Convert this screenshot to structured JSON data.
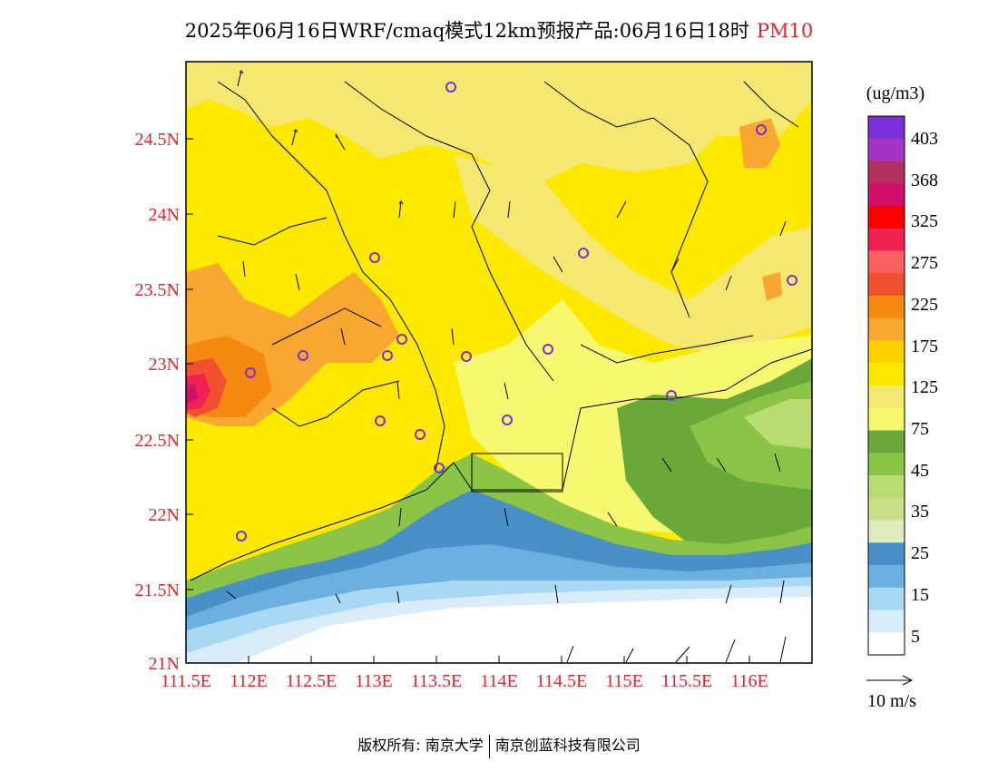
{
  "title": {
    "text": "2025年06月16日WRF/cmaq模式12km预报产品:06月16日18时",
    "variable": "PM10"
  },
  "map": {
    "type": "pollutant_concentration_map",
    "region": "Guangdong / Pearl River Delta",
    "lon_range": [
      111.5,
      116.5
    ],
    "lat_range": [
      21.0,
      25.0
    ],
    "lon_ticks": [
      "111.5E",
      "112E",
      "112.5E",
      "113E",
      "113.5E",
      "114E",
      "114.5E",
      "115E",
      "115.5E",
      "116E"
    ],
    "lat_ticks": [
      "24.5N",
      "24N",
      "23.5N",
      "23N",
      "22.5N",
      "22N",
      "21.5N",
      "21N"
    ],
    "wind_vectors": "shown",
    "city_markers": "purple circles"
  },
  "legend": {
    "unit": "(ug/m3)",
    "labels": [
      "403",
      "368",
      "325",
      "275",
      "225",
      "175",
      "125",
      "75",
      "45",
      "35",
      "25",
      "15",
      "5"
    ],
    "colors": [
      "#7a30d8",
      "#a533c8",
      "#b03060",
      "#d0106a",
      "#ff0000",
      "#f02050",
      "#f86060",
      "#f05030",
      "#f68a10",
      "#f8a830",
      "#fcd000",
      "#fde800",
      "#f4e870",
      "#f6f870",
      "#6aa83a",
      "#8cc448",
      "#b8dc70",
      "#c8e088",
      "#e0ecc0",
      "#4a90c8",
      "#6cb0e0",
      "#a8d8f4",
      "#d8ecfa",
      "#ffffff"
    ],
    "wind_scale_label": "10 m/s"
  },
  "footer": {
    "left": "版权所有: 南京大学",
    "right": "南京创蓝科技有限公司"
  }
}
